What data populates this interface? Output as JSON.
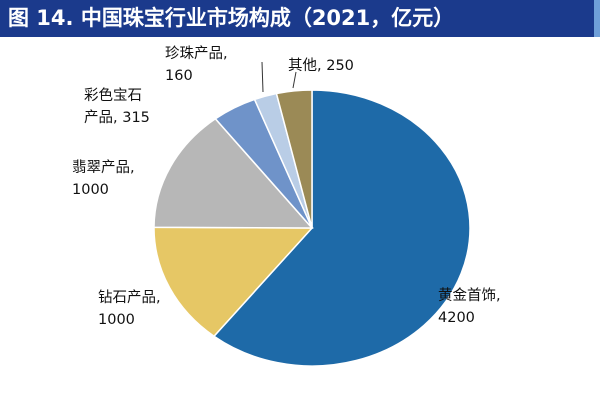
{
  "header": {
    "title": "图 14. 中国珠宝行业市场构成（2021，亿元）",
    "background_color": "#1b3a8c",
    "accent_color": "#6f9fd8"
  },
  "chart_data": {
    "type": "pie",
    "title": "图 14. 中国珠宝行业市场构成（2021，亿元）",
    "unit": "亿元",
    "start_angle_deg": 0,
    "direction": "clockwise",
    "slices": [
      {
        "label": "黄金首饰",
        "value": 4200,
        "color": "#1e6aa8"
      },
      {
        "label": "钻石产品",
        "value": 1000,
        "color": "#e6c765"
      },
      {
        "label": "翡翠产品",
        "value": 1000,
        "color": "#b7b7b7"
      },
      {
        "label": "彩色宝石产品",
        "value": 315,
        "color": "#6f93c9"
      },
      {
        "label": "珍珠产品",
        "value": 160,
        "color": "#b9cde6"
      },
      {
        "label": "其他",
        "value": 250,
        "color": "#9b8a56"
      }
    ],
    "data_labels": [
      {
        "lines": [
          "黄金首饰,",
          "4200"
        ]
      },
      {
        "lines": [
          "钻石产品,",
          "1000"
        ]
      },
      {
        "lines": [
          "翡翠产品,",
          "1000"
        ]
      },
      {
        "lines": [
          "彩色宝石",
          "产品, 315"
        ]
      },
      {
        "lines": [
          "珍珠产品,",
          "160"
        ]
      },
      {
        "lines": [
          "其他, 250"
        ]
      }
    ]
  }
}
